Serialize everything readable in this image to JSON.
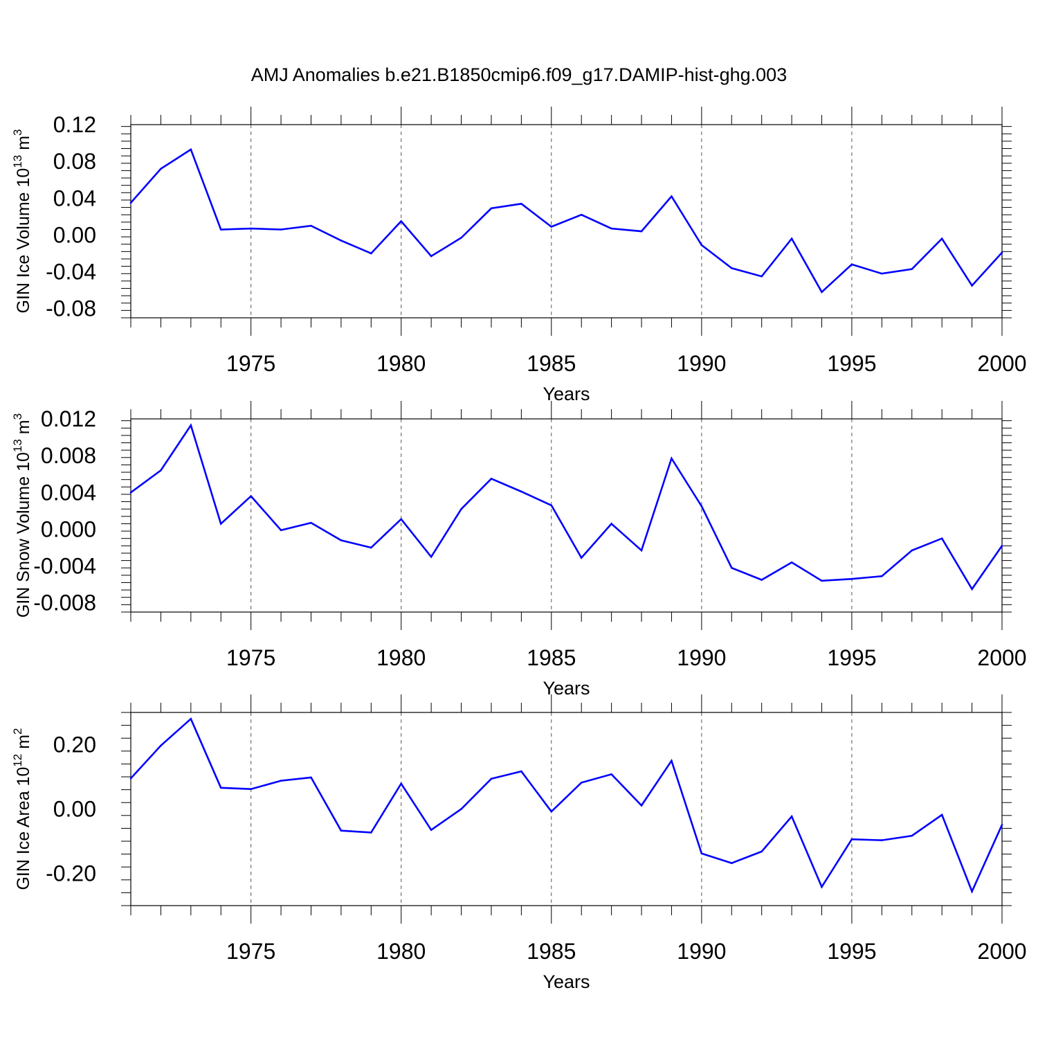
{
  "title": "AMJ Anomalies b.e21.B1850cmip6.f09_g17.DAMIP-hist-ghg.003",
  "line_color": "#0000ff",
  "chart_data": [
    {
      "type": "line",
      "ylabel": "GIN Ice Volume 10",
      "ylabel_exp": "13",
      "ylabel_unit": " m",
      "ylabel_unit_exp": "3",
      "xlabel": "Years",
      "xlim": [
        1971,
        2000
      ],
      "ylim": [
        -0.09,
        0.12
      ],
      "yticks": [
        -0.08,
        -0.04,
        0.0,
        0.04,
        0.08,
        0.12
      ],
      "ytick_labels": [
        "-0.08",
        "-0.04",
        "0.00",
        "0.04",
        "0.08",
        "0.12"
      ],
      "xticks": [
        1975,
        1980,
        1985,
        1990,
        1995,
        2000
      ],
      "xtick_labels": [
        "1975",
        "1980",
        "1985",
        "1990",
        "1995",
        "2000"
      ],
      "grid": "dashed vertical lines at labeled x ticks",
      "x": [
        1971,
        1972,
        1973,
        1974,
        1975,
        1976,
        1977,
        1978,
        1979,
        1980,
        1981,
        1982,
        1983,
        1984,
        1985,
        1986,
        1987,
        1988,
        1989,
        1990,
        1991,
        1992,
        1993,
        1994,
        1995,
        1996,
        1997,
        1998,
        1999,
        2000
      ],
      "values": [
        0.035,
        0.072,
        0.093,
        0.006,
        0.007,
        0.006,
        0.01,
        -0.006,
        -0.02,
        0.015,
        -0.023,
        -0.003,
        0.029,
        0.034,
        0.009,
        0.022,
        0.007,
        0.004,
        0.042,
        -0.011,
        -0.036,
        -0.045,
        -0.004,
        -0.062,
        -0.032,
        -0.042,
        -0.037,
        -0.004,
        -0.055,
        -0.019
      ]
    },
    {
      "type": "line",
      "ylabel": "GIN Snow Volume 10",
      "ylabel_exp": "13",
      "ylabel_unit": " m",
      "ylabel_unit_exp": "3",
      "xlabel": "Years",
      "xlim": [
        1971,
        2000
      ],
      "ylim": [
        -0.009,
        0.012
      ],
      "yticks": [
        -0.008,
        -0.004,
        0.0,
        0.004,
        0.008,
        0.012
      ],
      "ytick_labels": [
        "-0.008",
        "-0.004",
        "0.000",
        "0.004",
        "0.008",
        "0.012"
      ],
      "xticks": [
        1975,
        1980,
        1985,
        1990,
        1995,
        2000
      ],
      "xtick_labels": [
        "1975",
        "1980",
        "1985",
        "1990",
        "1995",
        "2000"
      ],
      "grid": "dashed vertical lines at labeled x ticks",
      "x": [
        1971,
        1972,
        1973,
        1974,
        1975,
        1976,
        1977,
        1978,
        1979,
        1980,
        1981,
        1982,
        1983,
        1984,
        1985,
        1986,
        1987,
        1988,
        1989,
        1990,
        1991,
        1992,
        1993,
        1994,
        1995,
        1996,
        1997,
        1998,
        1999,
        2000
      ],
      "values": [
        0.004,
        0.0064,
        0.0113,
        0.0006,
        0.0036,
        -0.0001,
        0.0007,
        -0.0012,
        -0.002,
        0.0011,
        -0.003,
        0.0022,
        0.0055,
        0.0041,
        0.0026,
        -0.0031,
        0.0006,
        -0.0023,
        0.0077,
        0.0025,
        -0.0042,
        -0.0055,
        -0.0036,
        -0.0056,
        -0.0054,
        -0.0051,
        -0.0023,
        -0.001,
        -0.0065,
        -0.0018
      ]
    },
    {
      "type": "line",
      "ylabel": "GIN Ice Area 10",
      "ylabel_exp": "12",
      "ylabel_unit": " m",
      "ylabel_unit_exp": "2",
      "xlabel": "Years",
      "xlim": [
        1971,
        2000
      ],
      "ylim": [
        -0.3,
        0.3
      ],
      "yticks": [
        -0.2,
        0.0,
        0.2
      ],
      "ytick_labels": [
        "-0.20",
        "0.00",
        "0.20"
      ],
      "xticks": [
        1975,
        1980,
        1985,
        1990,
        1995,
        2000
      ],
      "xtick_labels": [
        "1975",
        "1980",
        "1985",
        "1990",
        "1995",
        "2000"
      ],
      "grid": "dashed vertical lines at labeled x ticks",
      "x": [
        1971,
        1972,
        1973,
        1974,
        1975,
        1976,
        1977,
        1978,
        1979,
        1980,
        1981,
        1982,
        1983,
        1984,
        1985,
        1986,
        1987,
        1988,
        1989,
        1990,
        1991,
        1992,
        1993,
        1994,
        1995,
        1996,
        1997,
        1998,
        1999,
        2000
      ],
      "values": [
        0.095,
        0.197,
        0.28,
        0.066,
        0.062,
        0.088,
        0.098,
        -0.067,
        -0.073,
        0.079,
        -0.065,
        0.0,
        0.094,
        0.117,
        -0.008,
        0.082,
        0.108,
        0.011,
        0.15,
        -0.138,
        -0.168,
        -0.132,
        -0.023,
        -0.242,
        -0.094,
        -0.097,
        -0.083,
        -0.018,
        -0.256,
        -0.049
      ]
    }
  ]
}
